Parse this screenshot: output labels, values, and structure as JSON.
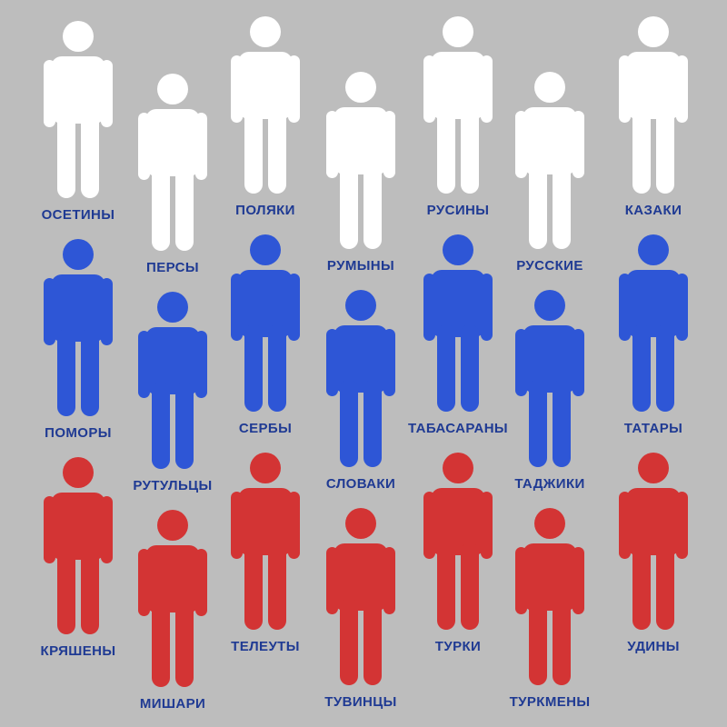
{
  "colors": {
    "background": "#bdbdbd",
    "white": "#ffffff",
    "blue": "#2e56d6",
    "red": "#d33434",
    "label": "#1f3a93"
  },
  "icon": "person-icon",
  "rows": [
    {
      "color": "white",
      "people": [
        {
          "label": "ОСЕТИНЫ"
        },
        {
          "label": "ПЕРСЫ"
        },
        {
          "label": "ПОЛЯКИ"
        },
        {
          "label": "РУМЫНЫ"
        },
        {
          "label": "РУСИНЫ"
        },
        {
          "label": "РУССКИЕ"
        },
        {
          "label": "КАЗАКИ"
        }
      ]
    },
    {
      "color": "blue",
      "people": [
        {
          "label": "ПОМОРЫ"
        },
        {
          "label": "РУТУЛЬЦЫ"
        },
        {
          "label": "СЕРБЫ"
        },
        {
          "label": "СЛОВАКИ"
        },
        {
          "label": "ТАБАСАРАНЫ"
        },
        {
          "label": "ТАДЖИКИ"
        },
        {
          "label": "ТАТАРЫ"
        }
      ]
    },
    {
      "color": "red",
      "people": [
        {
          "label": "КРЯШЕНЫ"
        },
        {
          "label": "МИШАРИ"
        },
        {
          "label": "ТЕЛЕУТЫ"
        },
        {
          "label": "ТУВИНЦЫ"
        },
        {
          "label": "ТУРКИ"
        },
        {
          "label": "ТУРКМЕНЫ"
        },
        {
          "label": "УДИНЫ"
        }
      ]
    }
  ]
}
